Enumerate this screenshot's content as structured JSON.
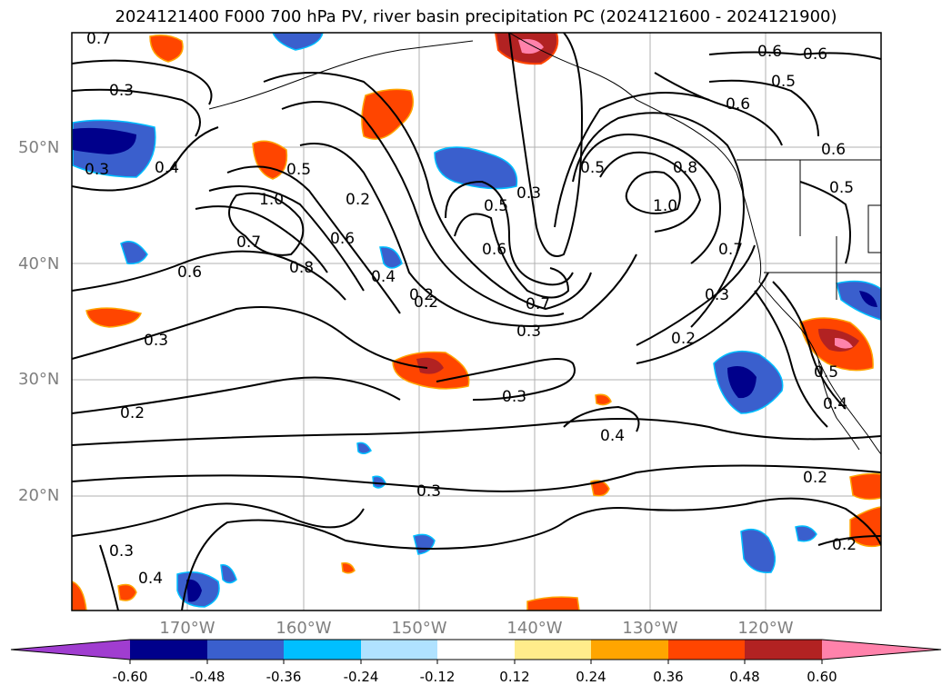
{
  "title": "2024121400 F000 700 hPa PV, river basin precipitation PC (2024121600 - 2024121900)",
  "map": {
    "lat_labels": [
      "50°N",
      "40°N",
      "30°N",
      "20°N"
    ],
    "lon_labels": [
      "170°W",
      "160°W",
      "150°W",
      "140°W",
      "130°W",
      "120°W"
    ],
    "gridline_color": "#b0b0b0"
  },
  "contour_labels": [
    "0.7",
    "0.3",
    "0.3",
    "0.4",
    "0.6",
    "1.0",
    "0.7",
    "0.8",
    "0.5",
    "0.2",
    "0.6",
    "0.4",
    "0.2",
    "0.3",
    "0.5",
    "0.6",
    "0.7",
    "0.3",
    "0.3",
    "0.2",
    "0.3",
    "0.4",
    "0.3",
    "0.4",
    "0.2",
    "0.6",
    "0.6",
    "0.5",
    "0.6",
    "0.8",
    "1.0",
    "0.6",
    "0.5",
    "0.7",
    "0.3",
    "0.2",
    "0.5",
    "0.4",
    "0.2",
    "0.2",
    "0.5",
    "0.3"
  ],
  "colorbar": {
    "colors": [
      "#a03dd0",
      "#00008b",
      "#3a5fcd",
      "#00bfff",
      "#b0e2ff",
      "#ffffff",
      "#ffec8b",
      "#ffa500",
      "#ff4500",
      "#b22222",
      "#ff82ab"
    ],
    "tick_labels": [
      "-0.60",
      "-0.48",
      "-0.36",
      "-0.24",
      "-0.12",
      "0.12",
      "0.24",
      "0.36",
      "0.48",
      "0.60"
    ]
  }
}
